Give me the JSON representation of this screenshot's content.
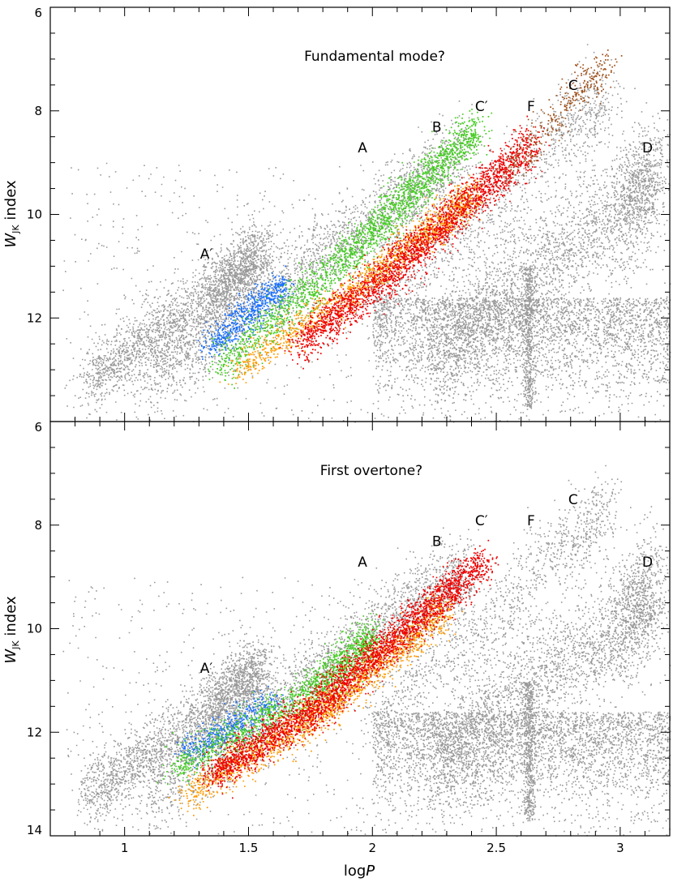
{
  "chart_data": [
    {
      "type": "scatter",
      "title": "Fundamental mode?",
      "xlabel": "",
      "ylabel": "W_JK index",
      "xlim": [
        0.7,
        3.2
      ],
      "ylim": [
        14,
        6
      ],
      "y_inverted": true,
      "xticks": [],
      "yticks": [
        "6",
        "8",
        "10",
        "12"
      ],
      "background_color": "#999999",
      "sequence_labels": [
        {
          "text": "A′",
          "x": 1.33,
          "y": 10.85
        },
        {
          "text": "A",
          "x": 1.96,
          "y": 8.8
        },
        {
          "text": "B",
          "x": 2.26,
          "y": 8.4
        },
        {
          "text": "C′",
          "x": 2.44,
          "y": 8.0
        },
        {
          "text": "F",
          "x": 2.64,
          "y": 8.0
        },
        {
          "text": "C",
          "x": 2.81,
          "y": 7.6
        },
        {
          "text": "D",
          "x": 3.11,
          "y": 8.8
        }
      ],
      "series": [
        {
          "color": "#1a6fff",
          "ridge": [
            [
              1.35,
              12.5
            ],
            [
              1.65,
              11.3
            ]
          ],
          "scatter": 0.28,
          "count": 650
        },
        {
          "color": "#44cc22",
          "ridge": [
            [
              1.38,
              12.9
            ],
            [
              1.85,
              11.0
            ],
            [
              2.15,
              9.6
            ],
            [
              2.42,
              8.3
            ]
          ],
          "scatter": 0.4,
          "count": 2000
        },
        {
          "color": "#ff9a00",
          "ridge": [
            [
              1.45,
              13.0
            ],
            [
              1.9,
              11.55
            ],
            [
              2.2,
              10.4
            ],
            [
              2.4,
              9.6
            ]
          ],
          "scatter": 0.32,
          "count": 1400
        },
        {
          "color": "#ee0000",
          "ridge": [
            [
              1.7,
              12.5
            ],
            [
              2.05,
              11.2
            ],
            [
              2.35,
              9.9
            ],
            [
              2.65,
              8.6
            ]
          ],
          "scatter": 0.4,
          "count": 2400
        },
        {
          "color": "#a0521c",
          "ridge": [
            [
              2.55,
              9.2
            ],
            [
              2.7,
              8.3
            ],
            [
              2.85,
              7.5
            ],
            [
              2.95,
              7.1
            ]
          ],
          "scatter": 0.35,
          "count": 320
        }
      ]
    },
    {
      "type": "scatter",
      "title": "First overtone?",
      "xlabel": "logP",
      "ylabel": "W_JK index",
      "xlim": [
        0.7,
        3.2
      ],
      "ylim": [
        14,
        6
      ],
      "y_inverted": true,
      "xticks": [
        "1",
        "1.5",
        "2",
        "2.5",
        "3"
      ],
      "yticks": [
        "6",
        "8",
        "10",
        "12",
        "14"
      ],
      "background_color": "#999999",
      "sequence_labels": [
        {
          "text": "A′",
          "x": 1.33,
          "y": 10.85
        },
        {
          "text": "A",
          "x": 1.96,
          "y": 8.8
        },
        {
          "text": "B",
          "x": 2.26,
          "y": 8.4
        },
        {
          "text": "C′",
          "x": 2.44,
          "y": 8.0
        },
        {
          "text": "F",
          "x": 2.64,
          "y": 8.0
        },
        {
          "text": "C",
          "x": 2.81,
          "y": 7.6
        },
        {
          "text": "D",
          "x": 3.11,
          "y": 8.8
        }
      ],
      "series": [
        {
          "color": "#1a6fff",
          "ridge": [
            [
              1.25,
              12.4
            ],
            [
              1.6,
              11.4
            ]
          ],
          "scatter": 0.3,
          "count": 450
        },
        {
          "color": "#44cc22",
          "ridge": [
            [
              1.2,
              12.7
            ],
            [
              1.75,
              11.2
            ],
            [
              2.0,
              10.1
            ]
          ],
          "scatter": 0.35,
          "count": 1400
        },
        {
          "color": "#ff9a00",
          "ridge": [
            [
              1.25,
              13.2
            ],
            [
              1.7,
              11.9
            ],
            [
              2.0,
              10.8
            ],
            [
              2.3,
              9.6
            ]
          ],
          "scatter": 0.35,
          "count": 1800
        },
        {
          "color": "#ee0000",
          "ridge": [
            [
              1.35,
              12.8
            ],
            [
              1.75,
              11.6
            ],
            [
              2.1,
              10.1
            ],
            [
              2.45,
              8.7
            ]
          ],
          "scatter": 0.35,
          "count": 3000
        }
      ]
    }
  ]
}
